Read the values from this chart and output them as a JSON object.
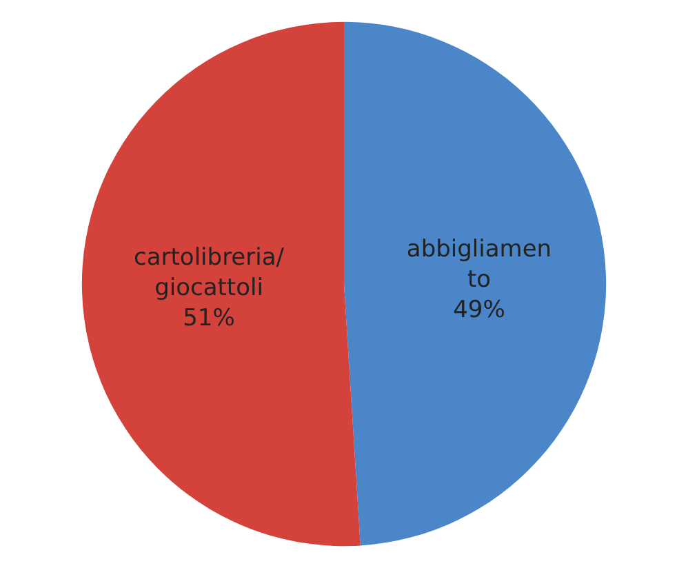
{
  "chart_data": {
    "type": "pie",
    "categories": [
      "abbigliamento",
      "cartolibreria/giocattoli"
    ],
    "values": [
      49,
      51
    ],
    "colors": [
      "#4a86c8",
      "#d4423c"
    ],
    "value_labels": [
      "49%",
      "51%"
    ],
    "legend": false
  }
}
